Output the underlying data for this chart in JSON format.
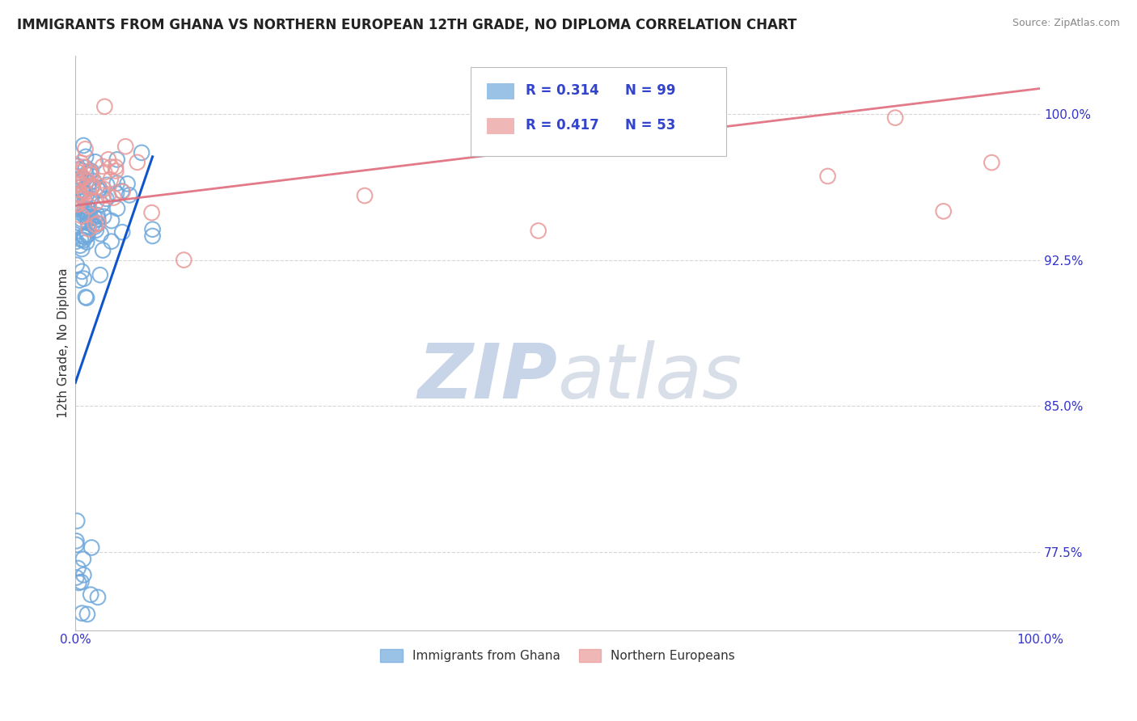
{
  "title": "IMMIGRANTS FROM GHANA VS NORTHERN EUROPEAN 12TH GRADE, NO DIPLOMA CORRELATION CHART",
  "source": "Source: ZipAtlas.com",
  "ylabel": "12th Grade, No Diploma",
  "xlim": [
    0.0,
    1.0
  ],
  "ylim": [
    0.735,
    1.03
  ],
  "yticks": [
    0.775,
    0.85,
    0.925,
    1.0
  ],
  "yticklabels": [
    "77.5%",
    "85.0%",
    "92.5%",
    "100.0%"
  ],
  "legend_labels": [
    "Immigrants from Ghana",
    "Northern Europeans"
  ],
  "blue_color": "#6fa8dc",
  "pink_color": "#ea9999",
  "blue_line_color": "#1155cc",
  "pink_line_color": "#e06c7c",
  "watermark_zip": "ZIP",
  "watermark_atlas": "atlas",
  "blue_R": 0.314,
  "blue_N": 99,
  "pink_R": 0.417,
  "pink_N": 53,
  "background_color": "#ffffff",
  "grid_color": "#cccccc",
  "title_fontsize": 12,
  "tick_fontsize": 11,
  "watermark_color": "#c8d4e8",
  "watermark_fontsize_zip": 68,
  "watermark_fontsize_atlas": 68
}
